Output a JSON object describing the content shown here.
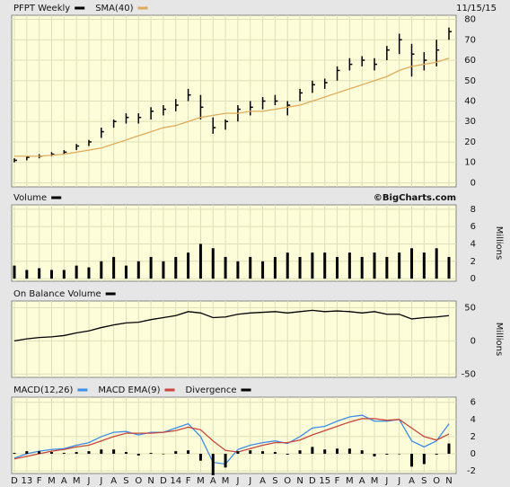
{
  "chart_data": [
    {
      "type": "ohlc",
      "date": "11/15/15",
      "ylim": [
        -2,
        82
      ],
      "yticks": [
        0,
        10,
        20,
        30,
        40,
        50,
        60,
        70,
        80
      ],
      "series": [
        {
          "name": "PFPT Weekly",
          "type": "ohlc",
          "color": "#000000",
          "values": [
            11,
            12.5,
            13,
            14,
            15,
            18,
            20,
            25,
            30,
            32,
            32,
            35,
            36,
            38,
            43,
            37,
            27,
            30,
            36,
            37,
            40,
            40,
            38,
            44,
            48,
            49,
            55,
            58,
            60,
            58,
            65,
            70,
            63,
            60,
            65,
            74
          ],
          "high": [
            12,
            13,
            14,
            15,
            16,
            19,
            21,
            27,
            31,
            34,
            34,
            37,
            38,
            41,
            46,
            43,
            32,
            31,
            38,
            40,
            42,
            43,
            40,
            46,
            50,
            51,
            57,
            61,
            62,
            61,
            67,
            73,
            68,
            64,
            70,
            76
          ],
          "low": [
            10,
            11,
            12,
            13,
            14,
            16,
            18,
            22,
            27,
            29,
            29,
            31,
            33,
            35,
            40,
            31,
            24,
            26,
            30,
            33,
            36,
            38,
            33,
            40,
            44,
            46,
            50,
            55,
            57,
            55,
            60,
            63,
            52,
            55,
            57,
            70
          ]
        },
        {
          "name": "SMA(40)",
          "type": "line",
          "color": "#e0ac5c",
          "values": [
            13,
            13,
            13,
            13.5,
            14,
            15,
            16,
            17,
            19,
            21,
            23,
            25,
            27,
            28,
            30,
            32,
            33,
            34,
            34,
            35,
            35,
            36,
            37,
            38,
            40,
            42,
            44,
            46,
            48,
            50,
            52,
            55,
            57,
            58,
            59,
            61
          ]
        }
      ]
    },
    {
      "type": "bar",
      "credit": "©BigCharts.com",
      "axis_label": "Millions",
      "ylim": [
        -0.3,
        8.5
      ],
      "yticks": [
        0,
        2,
        4,
        6,
        8
      ],
      "series": [
        {
          "name": "Volume",
          "type": "bar",
          "color": "#000000",
          "values": [
            1.5,
            1,
            1.2,
            1,
            1,
            1.5,
            1.3,
            2,
            2.5,
            1.5,
            2,
            2.5,
            2,
            2.5,
            3,
            4,
            3.5,
            2.5,
            2,
            2.5,
            2,
            2.5,
            3,
            2.5,
            3,
            3,
            2.5,
            3,
            2.5,
            3,
            2.5,
            3,
            3.5,
            3,
            3.5,
            2.5
          ]
        }
      ]
    },
    {
      "type": "line",
      "axis_label": "Millions",
      "ylim": [
        -55,
        60
      ],
      "yticks": [
        -50,
        0,
        50
      ],
      "series": [
        {
          "name": "On Balance Volume",
          "type": "line",
          "color": "#000000",
          "values": [
            0,
            3,
            5,
            6,
            8,
            12,
            15,
            20,
            24,
            27,
            28,
            32,
            35,
            38,
            44,
            42,
            35,
            36,
            40,
            42,
            43,
            44,
            42,
            44,
            46,
            44,
            45,
            44,
            42,
            44,
            40,
            40,
            33,
            35,
            36,
            38
          ]
        }
      ]
    },
    {
      "type": "line",
      "ylim": [
        -2.3,
        6.6
      ],
      "yticks": [
        -2,
        0,
        2,
        4,
        6
      ],
      "categories": [
        "D",
        "13",
        "F",
        "M",
        "A",
        "M",
        "J",
        "J",
        "A",
        "S",
        "O",
        "N",
        "D",
        "14",
        "F",
        "M",
        "A",
        "M",
        "J",
        "J",
        "A",
        "S",
        "O",
        "N",
        "D",
        "15",
        "F",
        "M",
        "A",
        "M",
        "J",
        "J",
        "A",
        "S",
        "O",
        "N"
      ],
      "series": [
        {
          "name": "MACD(12,26)",
          "type": "line",
          "color": "#3d8ee8",
          "values": [
            -0.5,
            0,
            0.3,
            0.5,
            0.6,
            1,
            1.3,
            2,
            2.5,
            2.6,
            2.2,
            2.5,
            2.5,
            3,
            3.5,
            2,
            -1,
            -1.2,
            0.5,
            1,
            1.3,
            1.5,
            1.2,
            2,
            3,
            3.2,
            3.8,
            4.3,
            4.5,
            3.8,
            3.8,
            4,
            1.5,
            0.8,
            1.5,
            3.5
          ]
        },
        {
          "name": "MACD EMA(9)",
          "type": "line",
          "color": "#c8463c",
          "values": [
            -0.6,
            -0.3,
            0,
            0.3,
            0.5,
            0.8,
            1,
            1.5,
            2,
            2.4,
            2.4,
            2.4,
            2.5,
            2.7,
            3.1,
            2.8,
            1.5,
            0.4,
            0.2,
            0.6,
            1,
            1.3,
            1.3,
            1.6,
            2.2,
            2.7,
            3.2,
            3.7,
            4.1,
            4.1,
            3.9,
            4,
            3,
            2,
            1.6,
            2.3
          ]
        },
        {
          "name": "Divergence",
          "type": "bar",
          "color": "#000000",
          "values": [
            0.1,
            0.3,
            0.3,
            0.2,
            0.1,
            0.2,
            0.3,
            0.5,
            0.5,
            0.2,
            -0.2,
            0.1,
            0,
            0.3,
            0.4,
            -0.8,
            -2.5,
            -1.6,
            0.3,
            0.4,
            0.3,
            0.2,
            -0.1,
            0.4,
            0.8,
            0.5,
            0.6,
            0.6,
            0.4,
            -0.3,
            -0.1,
            0,
            -1.5,
            -1.2,
            -0.1,
            1.2
          ]
        }
      ]
    }
  ]
}
